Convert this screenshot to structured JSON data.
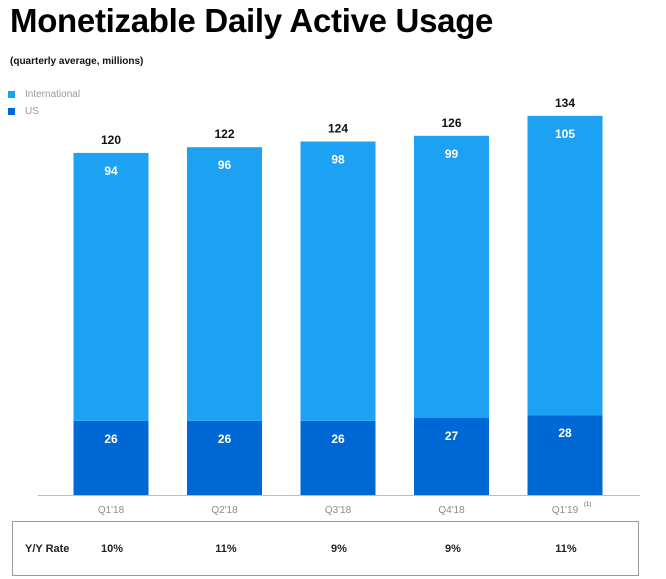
{
  "title": "Monetizable Daily Active Usage",
  "subtitle": "(quarterly average, millions)",
  "colors": {
    "international": "#1da1f2",
    "us": "#0068d4",
    "axis": "#bdbdbd"
  },
  "chart_data": {
    "type": "bar",
    "stacked": true,
    "categories": [
      "Q1'18",
      "Q2'18",
      "Q3'18",
      "Q4'18",
      "Q1'19"
    ],
    "category_superscripts": [
      "",
      "",
      "",
      "",
      "(1)"
    ],
    "series": [
      {
        "name": "International",
        "values": [
          94,
          96,
          98,
          99,
          105
        ]
      },
      {
        "name": "US",
        "values": [
          26,
          26,
          26,
          27,
          28
        ]
      }
    ],
    "totals": [
      120,
      122,
      124,
      126,
      134
    ],
    "title": "Monetizable Daily Active Usage",
    "ylim": [
      0,
      134
    ],
    "grid": false,
    "legend": "top-left"
  },
  "yy_table": {
    "label": "Y/Y Rate",
    "values": [
      "10%",
      "11%",
      "9%",
      "9%",
      "11%"
    ]
  }
}
